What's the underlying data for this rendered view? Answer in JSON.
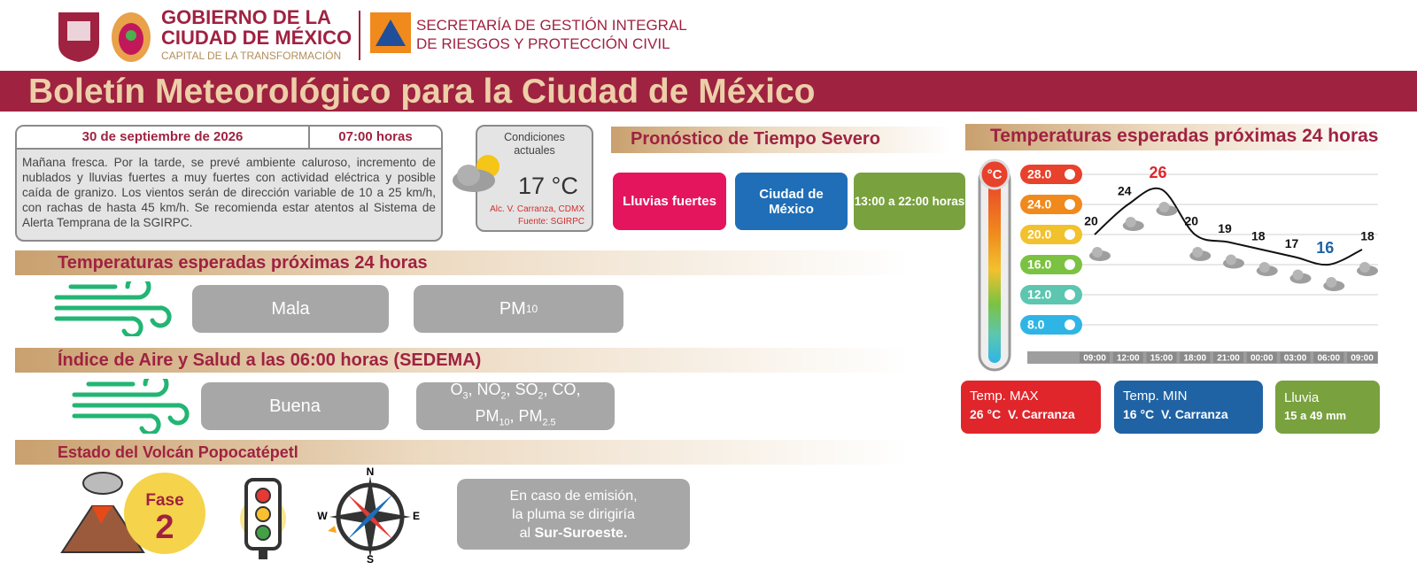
{
  "header": {
    "org_line1": "GOBIERNO DE LA",
    "org_line2": "CIUDAD DE MÉXICO",
    "org_tagline": "CAPITAL DE LA TRANSFORMACIÓN",
    "agency_line1": "SECRETARÍA DE GESTIÓN INTEGRAL",
    "agency_line2": "DE RIESGOS Y PROTECCIÓN CIVIL"
  },
  "title": "Boletín Meteorológico para la Ciudad de México",
  "bulletin": {
    "date": "30 de septiembre de 2026",
    "time": "07:00 horas",
    "description": "Mañana fresca. Por la tarde, se prevé ambiente caluroso, incremento de nublados y lluvias fuertes a muy fuertes con actividad eléctrica y posible caída de granizo. Los vientos serán de dirección variable de 10 a 25 km/h, con rachas de hasta 45 km/h. Se recomienda estar atentos al Sistema de Alerta Temprana de la SGIRPC."
  },
  "current_conditions": {
    "label_lines": [
      "Condiciones",
      "actuales"
    ],
    "temperature": "17 °C",
    "location": "Alc. V. Carranza, CDMX",
    "source": "Fuente: SGIRPC"
  },
  "severe_weather": {
    "heading": "Pronóstico de Tiempo Severo",
    "phenomenon": "Lluvias fuertes",
    "area": "Ciudad de México",
    "period": "13:00 a 22:00 horas"
  },
  "air_forecast": {
    "heading": "Temperaturas esperadas próximas 24 horas",
    "quality": "Mala",
    "pollutant": "PM10"
  },
  "air_index": {
    "heading": "Índice de Aire y Salud a las 06:00 horas (SEDEMA)",
    "quality": "Buena",
    "pollutant_lines": [
      "O3, NO2, SO2, CO,",
      "PM10, PM2.5"
    ]
  },
  "volcano": {
    "heading": "Estado del Volcán Popocatépetl",
    "phase_label": "Fase",
    "phase": "2",
    "compass": {
      "n": "N",
      "s": "S",
      "e": "E",
      "w": "W"
    },
    "plume_lines": [
      "En caso de emisión,",
      "la pluma se dirigiría"
    ],
    "plume_prefix": "al",
    "plume_direction": "Sur-Suroeste."
  },
  "chart_data": {
    "type": "line",
    "title": "Temperaturas esperadas próximas 24 horas",
    "unit": "°C",
    "categories": [
      "09:00",
      "12:00",
      "15:00",
      "18:00",
      "21:00",
      "00:00",
      "03:00",
      "06:00",
      "09:00"
    ],
    "values": [
      20,
      24,
      26,
      20,
      19,
      18,
      17,
      16,
      18
    ],
    "ylim": [
      4,
      30
    ],
    "yticks": [
      {
        "value": 28,
        "label": "28.0"
      },
      {
        "value": 24,
        "label": "24.0"
      },
      {
        "value": 20,
        "label": "20.0"
      },
      {
        "value": 16,
        "label": "16.0"
      },
      {
        "value": 12,
        "label": "12.0"
      },
      {
        "value": 8,
        "label": "8.0"
      }
    ],
    "color": "#111111",
    "grid": true
  },
  "summary": {
    "max_label": "Temp. MAX",
    "max_value": "26 °C",
    "max_place": "V. Carranza",
    "min_label": "Temp. MIN",
    "min_value": "16 °C",
    "min_place": "V. Carranza",
    "rain_label": "Lluvia",
    "rain_value": "15 a 49 mm"
  }
}
